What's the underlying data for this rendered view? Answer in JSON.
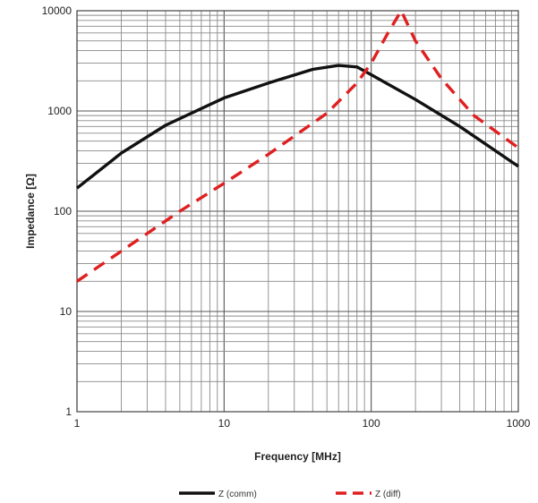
{
  "chart_data": {
    "type": "line",
    "xlabel": "Frequency [MHz]",
    "ylabel": "Impedance [Ω]",
    "x_scale": "log",
    "y_scale": "log",
    "xlim": [
      1,
      1000
    ],
    "ylim": [
      1,
      10000
    ],
    "grid": true,
    "legend_position": "bottom",
    "x_ticks": [
      "1",
      "10",
      "100",
      "1000"
    ],
    "y_ticks": [
      "1",
      "10",
      "100",
      "1000",
      "10000"
    ],
    "series": [
      {
        "name": "Z (comm)",
        "color": "#111111",
        "style": "solid",
        "points": [
          [
            1,
            170
          ],
          [
            2,
            380
          ],
          [
            4,
            720
          ],
          [
            10,
            1350
          ],
          [
            20,
            1900
          ],
          [
            40,
            2600
          ],
          [
            60,
            2850
          ],
          [
            80,
            2750
          ],
          [
            100,
            2300
          ],
          [
            200,
            1300
          ],
          [
            400,
            700
          ],
          [
            1000,
            280
          ]
        ]
      },
      {
        "name": "Z (diff)",
        "color": "#e02020",
        "style": "dashed",
        "points": [
          [
            1,
            20
          ],
          [
            2,
            40
          ],
          [
            5,
            100
          ],
          [
            10,
            190
          ],
          [
            20,
            370
          ],
          [
            50,
            950
          ],
          [
            80,
            1900
          ],
          [
            100,
            3000
          ],
          [
            130,
            6000
          ],
          [
            160,
            10000
          ],
          [
            200,
            5000
          ],
          [
            300,
            2100
          ],
          [
            500,
            900
          ],
          [
            1000,
            430
          ]
        ]
      }
    ]
  }
}
